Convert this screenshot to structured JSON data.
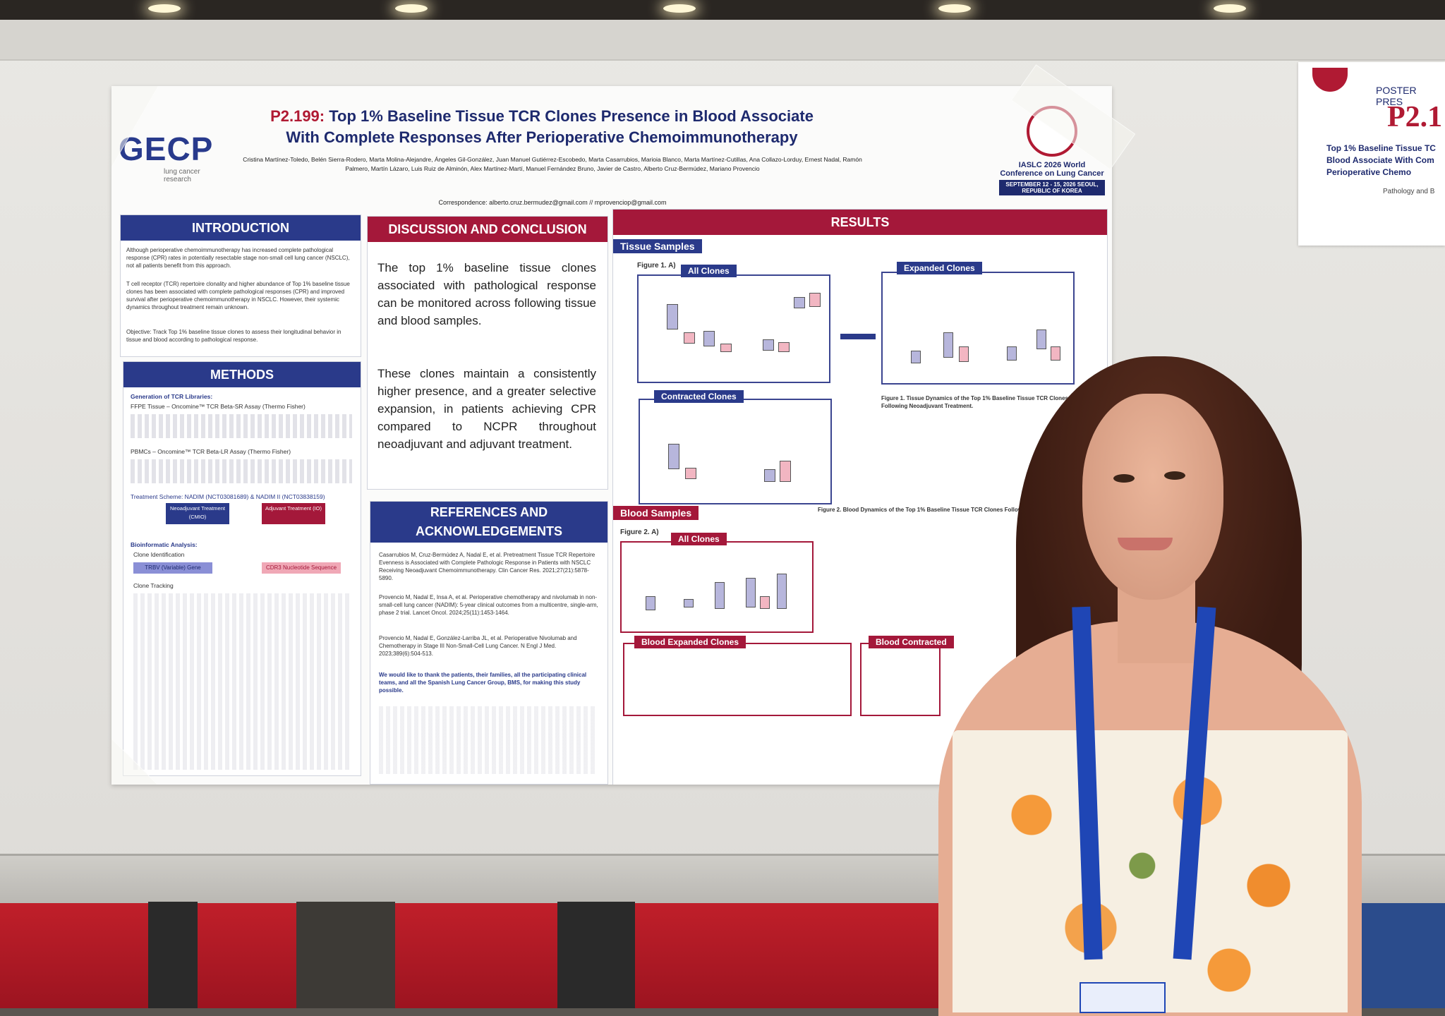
{
  "poster": {
    "code": "P2.199:",
    "title": "Top 1% Baseline Tissue TCR Clones Presence in Blood Associate With Complete Responses After Perioperative Chemoimmunotherapy",
    "authors": "Cristina Martínez-Toledo, Belén Sierra-Rodero, Marta Molina-Alejandre, Ángeles Gil-González, Juan Manuel Gutiérrez-Escobedo, Marta Casarrubios, Marioia Blanco, Marta Martínez-Cutillas, Ana Collazo-Lorduy, Ernest Nadal, Ramón Palmero, Martín Lázaro, Luis Ruiz de Alminón, Alex Martínez-Martí, Manuel Fernández Bruno, Javier de Castro, Alberto Cruz-Bermúdez, Mariano Provencio",
    "correspondence": "Correspondence: alberto.cruz.bermudez@gmail.com // mprovenciop@gmail.com",
    "logo": {
      "name": "GECP",
      "subtitle": "lung cancer research"
    },
    "conference": {
      "name": "IASLC 2026 World Conference on Lung Cancer",
      "dates": "SEPTEMBER 12 - 15, 2026 SEOUL, REPUBLIC OF KOREA"
    },
    "sections": {
      "introduction": {
        "heading": "INTRODUCTION",
        "p1": "Although perioperative chemoimmunotherapy has increased complete pathological response (CPR) rates in potentially resectable stage non-small cell lung cancer (NSCLC), not all patients benefit from this approach.",
        "p2": "T cell receptor (TCR) repertoire clonality and higher abundance of Top 1% baseline tissue clones has been associated with complete pathological responses (CPR) and improved survival after perioperative chemoimmunotherapy in NSCLC. However, their systemic dynamics throughout treatment remain unknown.",
        "objective": "Objective: Track Top 1% baseline tissue clones to assess their longitudinal behavior in tissue and blood according to pathological response."
      },
      "methods": {
        "heading": "METHODS",
        "gen": "Generation of TCR Libraries:",
        "ffpe": "FFPE Tissue – Oncomine™ TCR Beta-SR Assay (Thermo Fisher)",
        "pbmc": "PBMCs – Oncomine™ TCR Beta-LR Assay (Thermo Fisher)",
        "scheme": "Treatment Scheme: NADIM (NCT03081689) & NADIM II (NCT03838159)",
        "neo": "Neoadjuvant Treatment (CMIO)",
        "adj": "Adjuvant Treatment (IO)",
        "bio": "Bioinformatic Analysis:",
        "clone_id": "Clone Identification",
        "trbv": "TRBV (Variable) Gene",
        "cdr3": "CDR3 Nucleotide Sequence",
        "tracking": "Clone Tracking"
      },
      "discussion": {
        "heading": "DISCUSSION AND CONCLUSION",
        "p1": "The top 1% baseline tissue clones associated with pathological response can be monitored across following tissue and blood samples.",
        "p2": "These clones maintain a consistently higher presence, and a greater selective expansion, in patients achieving CPR compared to NCPR throughout neoadjuvant and adjuvant treatment."
      },
      "references": {
        "heading": "REFERENCES AND ACKNOWLEDGEMENTS",
        "r1": "Casarrubios M, Cruz-Bermúdez A, Nadal E, et al. Pretreatment Tissue TCR Repertoire Evenness is Associated with Complete Pathologic Response in Patients with NSCLC Receiving Neoadjuvant Chemoimmunotherapy. Clin Cancer Res. 2021;27(21):5878-5890.",
        "r2": "Provencio M, Nadal E, Insa A, et al. Perioperative chemotherapy and nivolumab in non-small-cell lung cancer (NADIM): 5-year clinical outcomes from a multicentre, single-arm, phase 2 trial. Lancet Oncol. 2024;25(11):1453-1464.",
        "r3": "Provencio M, Nadal E, González-Larriba JL, et al. Perioperative Nivolumab and Chemotherapy in Stage III Non-Small-Cell Lung Cancer. N Engl J Med. 2023;389(6):504-513.",
        "thanks": "We would like to thank the patients, their families, all the participating clinical teams, and all the Spanish Lung Cancer Group, BMS, for making this study possible."
      },
      "results": {
        "heading": "RESULTS",
        "tissue": "Tissue Samples",
        "fig1a": "Figure 1. A)",
        "all_clones": "All Clones",
        "expanded": "Expanded Clones",
        "contracted": "Contracted Clones",
        "blood": "Blood Samples",
        "fig2a": "Figure 2. A)",
        "blood_expanded": "Blood Expanded Clones",
        "blood_contracted": "Blood Contracted",
        "fig1_caption": "Figure 1. Tissue Dynamics of the Top 1% Baseline Tissue TCR Clones Following Neoadjuvant Treatment.",
        "fig2_caption": "Figure 2. Blood Dynamics of the Top 1% Baseline Tissue TCR Clones Following Treatment."
      }
    }
  },
  "sign": {
    "label": "POSTER PRES",
    "code": "P2.1",
    "title": "Top 1% Baseline Tissue TC Blood Associate With Com Perioperative Chemo",
    "topic": "Pathology and B"
  }
}
